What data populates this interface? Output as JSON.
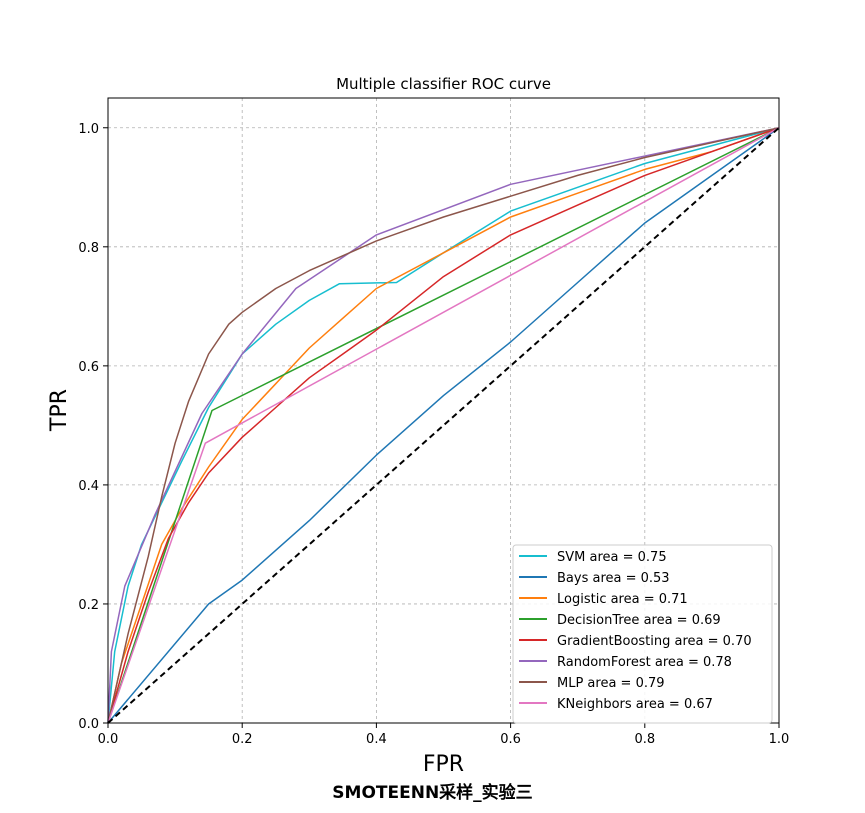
{
  "chart_data": {
    "type": "line",
    "title": "Multiple classifier ROC curve",
    "xlabel": "FPR",
    "ylabel": "TPR",
    "xlim": [
      0.0,
      1.0
    ],
    "ylim": [
      0.0,
      1.05
    ],
    "xticks": [
      "0.0",
      "0.2",
      "0.4",
      "0.6",
      "0.8",
      "1.0"
    ],
    "yticks": [
      "0.0",
      "0.2",
      "0.4",
      "0.6",
      "0.8",
      "1.0"
    ],
    "grid": true,
    "legend_position": "lower-right",
    "series": [
      {
        "name": "SVM area = 0.75",
        "color": "#17becf",
        "x": [
          0,
          0.01,
          0.03,
          0.05,
          0.08,
          0.11,
          0.15,
          0.2,
          0.25,
          0.3,
          0.345,
          0.43,
          0.5,
          0.6,
          0.7,
          0.8,
          0.9,
          1.0
        ],
        "y": [
          0,
          0.12,
          0.23,
          0.3,
          0.37,
          0.44,
          0.53,
          0.62,
          0.67,
          0.71,
          0.738,
          0.74,
          0.79,
          0.86,
          0.9,
          0.94,
          0.97,
          1.0
        ]
      },
      {
        "name": "Bays area = 0.53",
        "color": "#1f77b4",
        "x": [
          0,
          0.15,
          0.2,
          0.3,
          0.4,
          0.5,
          0.6,
          0.7,
          0.8,
          0.9,
          1.0
        ],
        "y": [
          0,
          0.2,
          0.24,
          0.34,
          0.45,
          0.55,
          0.64,
          0.74,
          0.84,
          0.92,
          1.0
        ]
      },
      {
        "name": "Logistic area = 0.71",
        "color": "#ff7f0e",
        "x": [
          0,
          0.02,
          0.05,
          0.08,
          0.11,
          0.15,
          0.2,
          0.25,
          0.3,
          0.35,
          0.4,
          0.5,
          0.6,
          0.7,
          0.8,
          0.9,
          1.0
        ],
        "y": [
          0,
          0.1,
          0.2,
          0.3,
          0.36,
          0.43,
          0.51,
          0.57,
          0.63,
          0.68,
          0.73,
          0.79,
          0.85,
          0.89,
          0.93,
          0.96,
          1.0
        ]
      },
      {
        "name": "DecisionTree area = 0.69",
        "color": "#2ca02c",
        "x": [
          0,
          0.155,
          1.0
        ],
        "y": [
          0,
          0.525,
          1.0
        ]
      },
      {
        "name": "GradientBoosting area = 0.70",
        "color": "#d62728",
        "x": [
          0,
          0.03,
          0.06,
          0.09,
          0.12,
          0.15,
          0.2,
          0.25,
          0.3,
          0.35,
          0.4,
          0.5,
          0.6,
          0.7,
          0.8,
          0.9,
          1.0
        ],
        "y": [
          0,
          0.12,
          0.22,
          0.31,
          0.37,
          0.42,
          0.48,
          0.53,
          0.58,
          0.62,
          0.66,
          0.75,
          0.82,
          0.87,
          0.92,
          0.96,
          1.0
        ]
      },
      {
        "name": "RandomForest area = 0.78",
        "color": "#9467bd",
        "x": [
          0,
          0.005,
          0.025,
          0.07,
          0.14,
          0.2,
          0.28,
          0.4,
          0.6,
          1.0
        ],
        "y": [
          0,
          0.12,
          0.23,
          0.35,
          0.52,
          0.62,
          0.73,
          0.82,
          0.905,
          1.0
        ]
      },
      {
        "name": " MLP area = 0.79",
        "color": "#8c564b",
        "x": [
          0,
          0.03,
          0.06,
          0.08,
          0.1,
          0.12,
          0.15,
          0.18,
          0.2,
          0.25,
          0.3,
          0.4,
          0.5,
          0.6,
          0.7,
          0.8,
          0.9,
          1.0
        ],
        "y": [
          0,
          0.15,
          0.28,
          0.38,
          0.47,
          0.54,
          0.62,
          0.67,
          0.69,
          0.73,
          0.76,
          0.81,
          0.85,
          0.885,
          0.92,
          0.95,
          0.975,
          1.0
        ]
      },
      {
        "name": "KNeighbors area = 0.67",
        "color": "#e377c2",
        "x": [
          0,
          0.145,
          1.0
        ],
        "y": [
          0,
          0.47,
          1.0
        ]
      }
    ],
    "reference_line": {
      "x": [
        0,
        1
      ],
      "y": [
        0,
        1
      ],
      "color": "#000000",
      "style": "dashed"
    }
  },
  "caption": "SMOTEENN采样_实验三"
}
